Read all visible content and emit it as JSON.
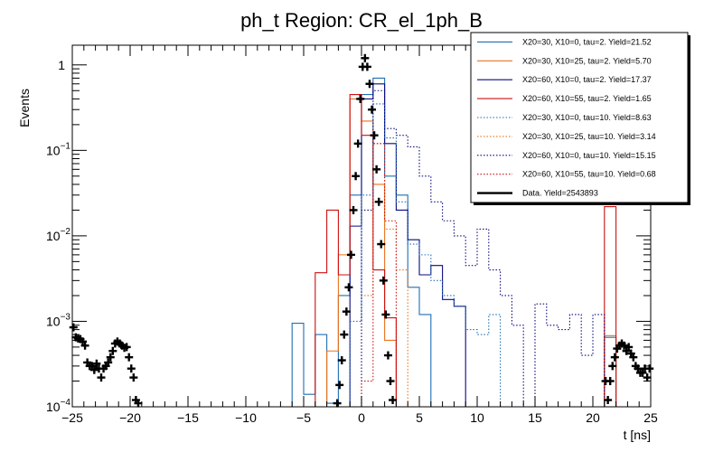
{
  "chart_data": {
    "type": "histogram",
    "title": "ph_t Region: CR_el_1ph_B",
    "xlabel": "t [ns]",
    "ylabel": "Events",
    "xlim": [
      -25,
      25
    ],
    "ylim": [
      0.0001,
      1.7
    ],
    "yscale": "log",
    "bin_width": 1,
    "x_ticks": [
      {
        "v": -25,
        "label": "−25"
      },
      {
        "v": -20,
        "label": "−20"
      },
      {
        "v": -15,
        "label": "−15"
      },
      {
        "v": -10,
        "label": "−10"
      },
      {
        "v": -5,
        "label": "−5"
      },
      {
        "v": 0,
        "label": "0"
      },
      {
        "v": 5,
        "label": "5"
      },
      {
        "v": 10,
        "label": "10"
      },
      {
        "v": 15,
        "label": "15"
      },
      {
        "v": 20,
        "label": "20"
      },
      {
        "v": 25,
        "label": "25"
      }
    ],
    "y_ticks": [
      {
        "v": 0.0001,
        "base": "10",
        "exp": "−4"
      },
      {
        "v": 0.001,
        "base": "10",
        "exp": "−3"
      },
      {
        "v": 0.01,
        "base": "10",
        "exp": "−2"
      },
      {
        "v": 0.1,
        "base": "10",
        "exp": "−1"
      },
      {
        "v": 1,
        "base": "1",
        "exp": ""
      }
    ],
    "legend_position": "top-right",
    "series": [
      {
        "name": "X20=30, X10=0, tau=2. Yield=21.52",
        "color": "#1f6fb4",
        "style": "solid",
        "bins": [
          [
            -6,
            0.00095
          ],
          [
            -5,
            0.00014
          ],
          [
            -4,
            0.0007
          ],
          [
            -3,
            0.00011
          ],
          [
            -2,
            0.002
          ],
          [
            -1,
            0.03
          ],
          [
            0,
            0.45
          ],
          [
            1,
            0.7
          ],
          [
            2,
            0.05
          ],
          [
            3,
            0.03
          ],
          [
            4,
            0.0025
          ],
          [
            5,
            0.0012
          ],
          [
            21,
            0.00065
          ]
        ]
      },
      {
        "name": "X20=30, X10=25, tau=2. Yield=5.70",
        "color": "#e8731e",
        "style": "solid",
        "bins": [
          [
            -3,
            0.00045
          ],
          [
            -2,
            0.006
          ],
          [
            -1,
            0.4
          ],
          [
            0,
            0.22
          ],
          [
            1,
            0.04
          ],
          [
            2,
            0.0006
          ],
          [
            21,
            0.00068
          ]
        ]
      },
      {
        "name": "X20=60, X10=0, tau=2. Yield=17.37",
        "color": "#0a0a80",
        "style": "solid",
        "bins": [
          [
            -1,
            0.013
          ],
          [
            0,
            0.4
          ],
          [
            1,
            0.6
          ],
          [
            2,
            0.12
          ],
          [
            3,
            0.02
          ],
          [
            4,
            0.009
          ],
          [
            5,
            0.0035
          ],
          [
            6,
            0.0045
          ],
          [
            7,
            0.0018
          ],
          [
            8,
            0.0015
          ]
        ]
      },
      {
        "name": "X20=60, X10=55, tau=2. Yield=1.65",
        "color": "#cc1111",
        "style": "solid",
        "bins": [
          [
            -4,
            0.0037
          ],
          [
            -3,
            0.02
          ],
          [
            -2,
            0.0035
          ],
          [
            -1,
            0.45
          ],
          [
            0,
            0.15
          ],
          [
            1,
            0.004
          ],
          [
            2,
            0.0011
          ],
          [
            21,
            0.022
          ]
        ]
      },
      {
        "name": "X20=30, X10=0, tau=10. Yield=8.63",
        "color": "#1f6fb4",
        "style": "dotted",
        "bins": [
          [
            -1,
            0.001
          ],
          [
            0,
            0.03
          ],
          [
            1,
            0.35
          ],
          [
            2,
            0.14
          ],
          [
            3,
            0.025
          ],
          [
            4,
            0.008
          ],
          [
            5,
            0.006
          ],
          [
            6,
            0.003
          ],
          [
            7,
            0.002
          ],
          [
            8,
            0.0015
          ],
          [
            9,
            0.0008
          ],
          [
            10,
            0.0007
          ],
          [
            11,
            0.0012
          ]
        ]
      },
      {
        "name": "X20=30, X10=25, tau=10. Yield=3.14",
        "color": "#e8731e",
        "style": "dotted",
        "bins": [
          [
            0,
            0.002
          ],
          [
            1,
            0.12
          ],
          [
            2,
            0.012
          ],
          [
            3,
            0.004
          ]
        ]
      },
      {
        "name": "X20=60, X10=0, tau=10. Yield=15.15",
        "color": "#0a0a80",
        "style": "dotted",
        "bins": [
          [
            0,
            0.02
          ],
          [
            1,
            0.5
          ],
          [
            2,
            0.18
          ],
          [
            3,
            0.15
          ],
          [
            4,
            0.11
          ],
          [
            5,
            0.05
          ],
          [
            6,
            0.025
          ],
          [
            7,
            0.015
          ],
          [
            8,
            0.01
          ],
          [
            9,
            0.0045
          ],
          [
            10,
            0.012
          ],
          [
            11,
            0.004
          ],
          [
            12,
            0.002
          ],
          [
            13,
            0.0009
          ],
          [
            15,
            0.0016
          ],
          [
            16,
            0.0009
          ],
          [
            17,
            0.0008
          ],
          [
            18,
            0.0012
          ],
          [
            19,
            0.0004
          ],
          [
            20,
            0.0012
          ]
        ]
      },
      {
        "name": "X20=60, X10=55, tau=10. Yield=0.68",
        "color": "#cc1111",
        "style": "dotted",
        "bins": [
          [
            0,
            0.0002
          ],
          [
            1,
            0.12
          ],
          [
            2,
            0.015
          ]
        ]
      }
    ],
    "data_series": {
      "name": "Data. Yield=2543893",
      "color": "#000000",
      "points": [
        [
          -24.9,
          0.00085
        ],
        [
          -24.7,
          0.00065
        ],
        [
          -24.5,
          0.00063
        ],
        [
          -24.3,
          0.00062
        ],
        [
          -24.1,
          0.00058
        ],
        [
          -23.9,
          0.00052
        ],
        [
          -23.7,
          0.00033
        ],
        [
          -23.5,
          0.0003
        ],
        [
          -23.3,
          0.0003
        ],
        [
          -23.1,
          0.00027
        ],
        [
          -22.9,
          0.00032
        ],
        [
          -22.7,
          0.00028
        ],
        [
          -22.5,
          0.00022
        ],
        [
          -22.3,
          0.00028
        ],
        [
          -22.1,
          0.0003
        ],
        [
          -21.9,
          0.00033
        ],
        [
          -21.7,
          0.00038
        ],
        [
          -21.5,
          0.00045
        ],
        [
          -21.3,
          0.00055
        ],
        [
          -21.1,
          0.00058
        ],
        [
          -20.9,
          0.00055
        ],
        [
          -20.7,
          0.00052
        ],
        [
          -20.5,
          0.00049
        ],
        [
          -20.3,
          0.0005
        ],
        [
          -20.1,
          0.00038
        ],
        [
          -19.9,
          0.00028
        ],
        [
          -19.7,
          0.00022
        ],
        [
          -19.5,
          0.00012
        ],
        [
          -19.3,
          0.00011
        ],
        [
          -2.1,
          0.00011
        ],
        [
          -1.9,
          0.00018
        ],
        [
          -1.7,
          0.00035
        ],
        [
          -1.5,
          0.0007
        ],
        [
          -1.3,
          0.0013
        ],
        [
          -1.1,
          0.0025
        ],
        [
          -0.9,
          0.006
        ],
        [
          -0.7,
          0.02
        ],
        [
          -0.5,
          0.05
        ],
        [
          -0.3,
          0.12
        ],
        [
          -0.1,
          0.4
        ],
        [
          0.1,
          0.95
        ],
        [
          0.3,
          1.2
        ],
        [
          0.5,
          0.95
        ],
        [
          0.7,
          0.6
        ],
        [
          0.9,
          0.3
        ],
        [
          1.1,
          0.15
        ],
        [
          1.3,
          0.06
        ],
        [
          1.5,
          0.025
        ],
        [
          1.7,
          0.008
        ],
        [
          1.9,
          0.003
        ],
        [
          2.1,
          0.0012
        ],
        [
          2.3,
          0.0004
        ],
        [
          2.5,
          0.0002
        ],
        [
          2.7,
          0.00012
        ],
        [
          21.1,
          0.0002
        ],
        [
          21.3,
          0.00012
        ],
        [
          21.5,
          0.0002
        ],
        [
          21.7,
          0.0003
        ],
        [
          21.9,
          0.00038
        ],
        [
          22.1,
          0.00048
        ],
        [
          22.3,
          0.00052
        ],
        [
          22.5,
          0.00055
        ],
        [
          22.7,
          0.00052
        ],
        [
          22.9,
          0.00045
        ],
        [
          23.1,
          0.0005
        ],
        [
          23.3,
          0.00042
        ],
        [
          23.5,
          0.00038
        ],
        [
          23.7,
          0.0003
        ],
        [
          23.9,
          0.00028
        ],
        [
          24.1,
          0.00025
        ],
        [
          24.3,
          0.00025
        ],
        [
          24.5,
          0.00028
        ],
        [
          24.7,
          0.00022
        ],
        [
          24.9,
          0.00028
        ]
      ]
    }
  }
}
